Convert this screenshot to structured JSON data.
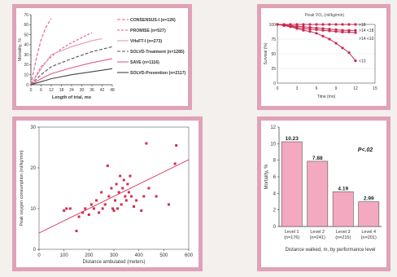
{
  "chart_data": [
    {
      "type": "line",
      "xlabel": "Length of trial, mo",
      "ylabel": "Mortality, %",
      "xlim": [
        0,
        48
      ],
      "ylim": [
        0,
        70
      ],
      "xticks": [
        "0",
        "6",
        "12",
        "18",
        "24",
        "30",
        "36",
        "42",
        "48"
      ],
      "yticks": [
        "0",
        "10",
        "20",
        "30",
        "40",
        "50",
        "60",
        "70"
      ],
      "grid": "off",
      "legend_position": "right",
      "series": [
        {
          "name": "CONSENSUS-I (n=126)",
          "color": "#e05c8a",
          "dash": "4,2",
          "x": [
            0,
            3,
            6,
            9,
            12
          ],
          "y": [
            0,
            25,
            45,
            58,
            66
          ]
        },
        {
          "name": "PROMISE (n=527)",
          "color": "#e05c8a",
          "dash": "3,2",
          "x": [
            0,
            6,
            12,
            18,
            24,
            30,
            36
          ],
          "y": [
            0,
            18,
            28,
            36,
            42,
            47,
            52
          ]
        },
        {
          "name": "VHeFT-I (n=273)",
          "color": "#e59ab4",
          "dash": "",
          "x": [
            0,
            6,
            12,
            24,
            36,
            42
          ],
          "y": [
            0,
            16,
            30,
            38,
            44,
            46
          ]
        },
        {
          "name": "SOLVD-Treatment (n=1285)",
          "color": "#555555",
          "dash": "4,2",
          "x": [
            0,
            6,
            12,
            24,
            36,
            48
          ],
          "y": [
            0,
            10,
            18,
            26,
            33,
            38
          ]
        },
        {
          "name": "SAVE (n=1116)",
          "color": "#e05c8a",
          "dash": "",
          "x": [
            0,
            6,
            12,
            24,
            36,
            48
          ],
          "y": [
            0,
            6,
            11,
            17,
            22,
            26
          ]
        },
        {
          "name": "SOLVD-Prevention (n=2117)",
          "color": "#444444",
          "dash": "",
          "x": [
            0,
            6,
            12,
            24,
            36,
            48
          ],
          "y": [
            0,
            3,
            6,
            10,
            13,
            16
          ]
        }
      ]
    },
    {
      "type": "line",
      "title": "Peak V̇O₂ (ml/kg/min)",
      "xlabel": "Time (mo)",
      "ylabel": "Survival (%)",
      "xlim": [
        0,
        15
      ],
      "ylim": [
        0,
        100
      ],
      "xticks": [
        "0",
        "3",
        "6",
        "9",
        "12",
        "15"
      ],
      "yticks": [
        "0",
        "25",
        "50",
        "75",
        "100"
      ],
      "grid": "on",
      "series": [
        {
          "name": ">18",
          "color": "#c8284f",
          "x": [
            0,
            1,
            2,
            3,
            4,
            5,
            6,
            7,
            8,
            9,
            10,
            11,
            12
          ],
          "y": [
            100,
            100,
            100,
            100,
            100,
            100,
            100,
            100,
            100,
            100,
            100,
            100,
            100
          ]
        },
        {
          "name": ">14 <18",
          "color": "#c8284f",
          "x": [
            0,
            1,
            2,
            3,
            4,
            5,
            6,
            7,
            8,
            9,
            10,
            11,
            12
          ],
          "y": [
            100,
            99,
            98,
            97,
            96,
            95,
            94,
            93,
            92,
            91,
            90,
            90,
            90
          ]
        },
        {
          "name": ">14 <10",
          "color": "#c8284f",
          "x": [
            0,
            1,
            2,
            3,
            4,
            5,
            6,
            7,
            8,
            9,
            10,
            11,
            12
          ],
          "y": [
            100,
            99,
            97,
            95,
            93,
            92,
            91,
            90,
            89,
            88,
            87,
            87,
            86
          ]
        },
        {
          "name": "<10",
          "color": "#c8284f",
          "x": [
            0,
            1,
            2,
            3,
            4,
            5,
            6,
            7,
            8,
            9,
            10,
            11,
            12
          ],
          "y": [
            100,
            98,
            96,
            93,
            90,
            88,
            85,
            80,
            75,
            68,
            60,
            52,
            38
          ]
        }
      ]
    },
    {
      "type": "scatter",
      "xlabel": "Distance ambulated (meters)",
      "ylabel": "Peak oxygen consumption (ml/kg/min)",
      "xlim": [
        0,
        600
      ],
      "ylim": [
        0,
        30
      ],
      "xticks": [
        "0",
        "100",
        "200",
        "300",
        "400",
        "500",
        "600"
      ],
      "yticks": [
        "0",
        "10",
        "20",
        "30"
      ],
      "grid": "off",
      "color": "#d22d52",
      "trendline": {
        "x": [
          0,
          600
        ],
        "y": [
          4,
          22
        ]
      },
      "points": [
        [
          100,
          9.5
        ],
        [
          110,
          10
        ],
        [
          125,
          10
        ],
        [
          150,
          4.5
        ],
        [
          160,
          8
        ],
        [
          175,
          9
        ],
        [
          185,
          10
        ],
        [
          200,
          8.5
        ],
        [
          210,
          11
        ],
        [
          220,
          10
        ],
        [
          230,
          12
        ],
        [
          240,
          9
        ],
        [
          250,
          14
        ],
        [
          255,
          10
        ],
        [
          265,
          11
        ],
        [
          275,
          20.5
        ],
        [
          280,
          13
        ],
        [
          290,
          15
        ],
        [
          295,
          10
        ],
        [
          300,
          9.5
        ],
        [
          305,
          12
        ],
        [
          310,
          16
        ],
        [
          315,
          10
        ],
        [
          320,
          14
        ],
        [
          325,
          18
        ],
        [
          330,
          11
        ],
        [
          335,
          15
        ],
        [
          340,
          17
        ],
        [
          345,
          13
        ],
        [
          350,
          12
        ],
        [
          355,
          16
        ],
        [
          360,
          14
        ],
        [
          365,
          18
        ],
        [
          370,
          13
        ],
        [
          380,
          10.5
        ],
        [
          390,
          12
        ],
        [
          410,
          9.5
        ],
        [
          420,
          13
        ],
        [
          430,
          26
        ],
        [
          440,
          15
        ],
        [
          470,
          13
        ],
        [
          520,
          11
        ],
        [
          545,
          21
        ],
        [
          550,
          25.5
        ]
      ]
    },
    {
      "type": "bar",
      "xlabel": "Distance walked, m, by performance level",
      "ylabel": "Mortality, %",
      "ylim": [
        0,
        12
      ],
      "yticks": [
        "0",
        "2",
        "4",
        "6",
        "8",
        "10",
        "12"
      ],
      "annotation": "P<.02",
      "categories": [
        "Level 1 (n=176)",
        "Level 2 (n=241)",
        "Level 3 (n=215)",
        "Level 4 (n=201)"
      ],
      "category_lines": [
        [
          "Level 1",
          "(n=176)"
        ],
        [
          "Level 2",
          "(n=241)"
        ],
        [
          "Level 3",
          "(n=215)"
        ],
        [
          "Level 4",
          "(n=201)"
        ]
      ],
      "values": [
        10.23,
        7.88,
        4.19,
        2.99
      ],
      "labels": [
        "10.23",
        "7.88",
        "4.19",
        "2.99"
      ],
      "color": "#f3a9c0"
    }
  ]
}
